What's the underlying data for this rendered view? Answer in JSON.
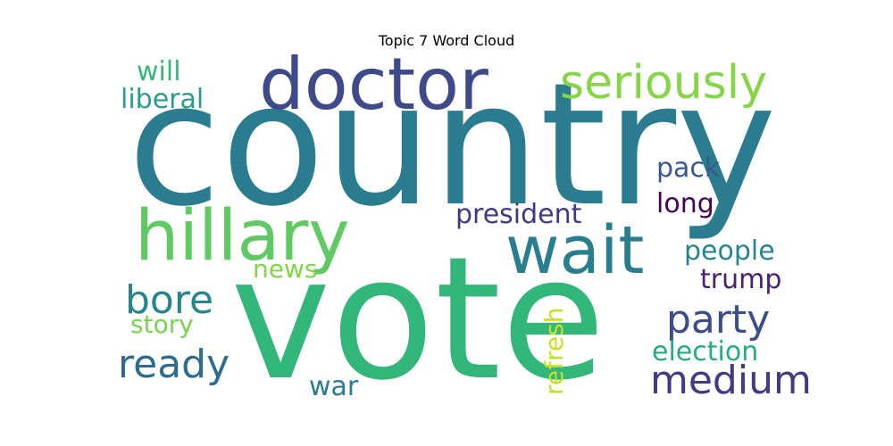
{
  "title": "Topic 7 Word Cloud",
  "chart_data": {
    "type": "wordcloud",
    "title": "Topic 7 Word Cloud",
    "words": [
      {
        "text": "country",
        "color": "#2a7c8e"
      },
      {
        "text": "vote",
        "color": "#32b67a"
      },
      {
        "text": "doctor",
        "color": "#3f4a8a"
      },
      {
        "text": "hillary",
        "color": "#60c963"
      },
      {
        "text": "wait",
        "color": "#287e8e"
      },
      {
        "text": "seriously",
        "color": "#86d549"
      },
      {
        "text": "party",
        "color": "#3d4d8a"
      },
      {
        "text": "medium",
        "color": "#443983"
      },
      {
        "text": "ready",
        "color": "#2e6c8e"
      },
      {
        "text": "bore",
        "color": "#25858e"
      },
      {
        "text": "president",
        "color": "#453781"
      },
      {
        "text": "pack",
        "color": "#38588c"
      },
      {
        "text": "long",
        "color": "#440154"
      },
      {
        "text": "people",
        "color": "#25848e"
      },
      {
        "text": "trump",
        "color": "#482173"
      },
      {
        "text": "election",
        "color": "#25ab82"
      },
      {
        "text": "liberal",
        "color": "#2a9d8a"
      },
      {
        "text": "will",
        "color": "#35b779"
      },
      {
        "text": "news",
        "color": "#84d44b"
      },
      {
        "text": "story",
        "color": "#7ad151"
      },
      {
        "text": "war",
        "color": "#2a7b8e"
      },
      {
        "text": "refresh",
        "color": "#c8e020"
      }
    ]
  }
}
